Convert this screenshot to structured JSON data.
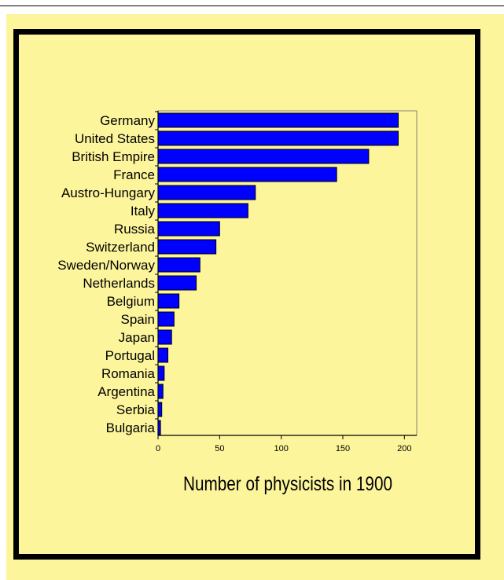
{
  "colors": {
    "background": "#fdf59c",
    "bar_fill": "#0000ff",
    "frame": "#000000"
  },
  "chart_data": {
    "type": "bar",
    "orientation": "horizontal",
    "categories": [
      "Germany",
      "United States",
      "British Empire",
      "France",
      "Austro-Hungary",
      "Italy",
      "Russia",
      "Switzerland",
      "Sweden/Norway",
      "Netherlands",
      "Belgium",
      "Spain",
      "Japan",
      "Portugal",
      "Romania",
      "Argentina",
      "Serbia",
      "Bulgaria"
    ],
    "values": [
      195,
      195,
      171,
      145,
      79,
      73,
      50,
      47,
      34,
      31,
      17,
      13,
      11,
      8,
      5,
      4,
      3,
      2
    ],
    "xlabel": "Number of physicists in 1900",
    "xlim": [
      0,
      210
    ],
    "xticks": [
      0,
      50,
      100,
      150,
      200
    ],
    "xtick_labels": [
      "0",
      "50",
      "100",
      "150",
      "200"
    ],
    "grid": false,
    "legend": "none"
  }
}
